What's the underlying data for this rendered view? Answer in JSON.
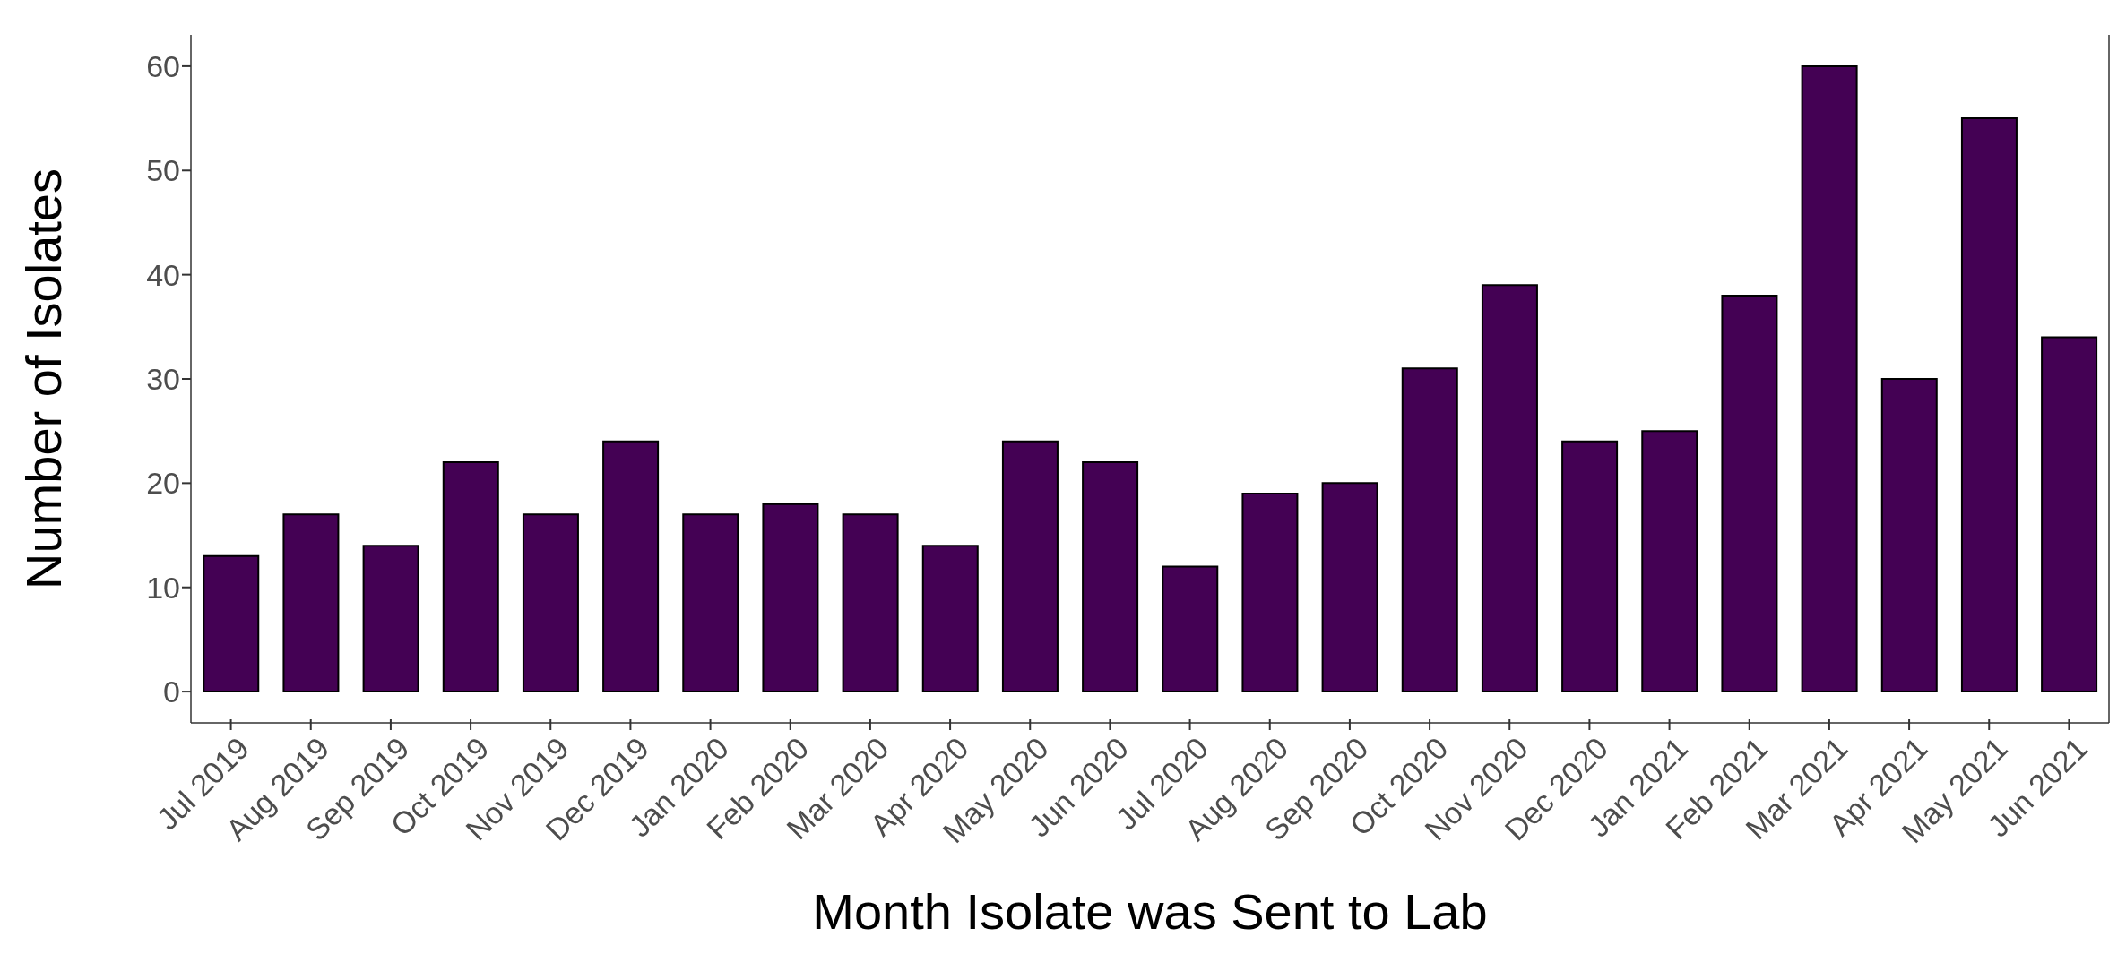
{
  "chart_data": {
    "type": "bar",
    "xlabel": "Month Isolate was Sent to Lab",
    "ylabel": "Number of Isolates",
    "categories": [
      "Jul 2019",
      "Aug 2019",
      "Sep 2019",
      "Oct 2019",
      "Nov 2019",
      "Dec 2019",
      "Jan 2020",
      "Feb 2020",
      "Mar 2020",
      "Apr 2020",
      "May 2020",
      "Jun 2020",
      "Jul 2020",
      "Aug 2020",
      "Sep 2020",
      "Oct 2020",
      "Nov 2020",
      "Dec 2020",
      "Jan 2021",
      "Feb 2021",
      "Mar 2021",
      "Apr 2021",
      "May 2021",
      "Jun 2021"
    ],
    "values": [
      13,
      17,
      14,
      22,
      17,
      24,
      17,
      18,
      17,
      14,
      24,
      22,
      12,
      19,
      20,
      31,
      39,
      24,
      25,
      38,
      60,
      30,
      55,
      34
    ],
    "color": "#440154",
    "ylim": [
      -3,
      63
    ],
    "yticks": [
      0,
      10,
      20,
      30,
      40,
      50,
      60
    ],
    "grid": false,
    "legend": false
  }
}
